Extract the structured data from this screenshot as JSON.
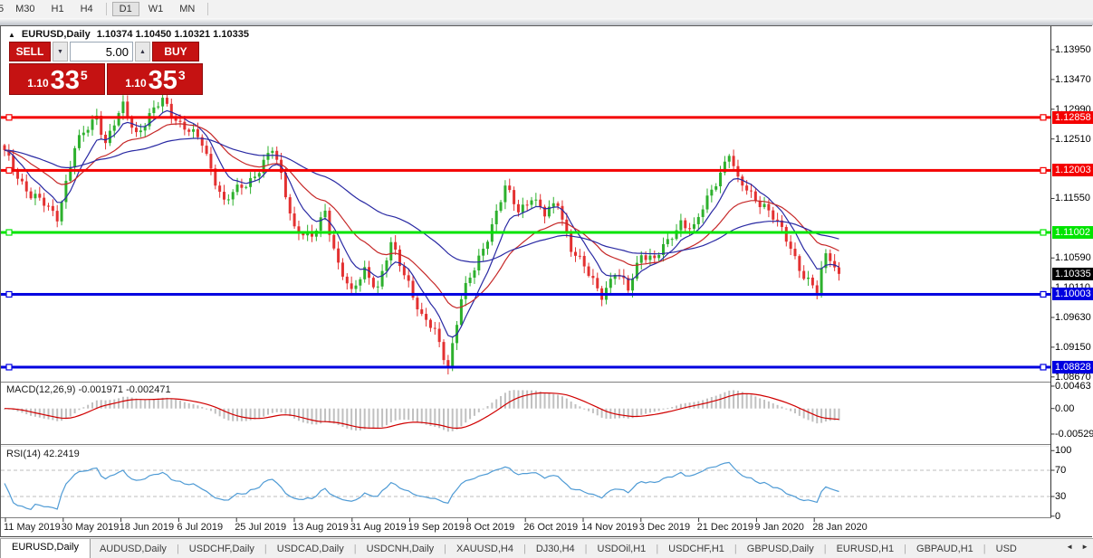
{
  "toolbar": {
    "timeframes": [
      "5",
      "M30",
      "H1",
      "H4",
      "D1",
      "W1",
      "MN"
    ],
    "active": "D1"
  },
  "icons": {
    "collapse_marker": "▲",
    "spin_down": "▼",
    "spin_up": "▲",
    "tab_scroll_left": "◄",
    "tab_scroll_right": "►"
  },
  "chart": {
    "symbol_label": "EURUSD,Daily",
    "ohlc_text": "1.10374 1.10450 1.10321 1.10335",
    "trade_panel": {
      "sell_label": "SELL",
      "buy_label": "BUY",
      "volume": "5.00",
      "sell_price_small": "1.10",
      "sell_price_big": "33",
      "sell_price_sup": "5",
      "buy_price_small": "1.10",
      "buy_price_big": "35",
      "buy_price_sup": "3"
    },
    "scale_ticks": [
      {
        "label": "1.13950",
        "price": 1.1395
      },
      {
        "label": "1.13470",
        "price": 1.1347
      },
      {
        "label": "1.12990",
        "price": 1.1299
      },
      {
        "label": "1.12510",
        "price": 1.1251
      },
      {
        "label": "1.11550",
        "price": 1.1155
      },
      {
        "label": "1.10590",
        "price": 1.1059
      },
      {
        "label": "1.10110",
        "price": 1.1011
      },
      {
        "label": "1.09630",
        "price": 1.0963
      },
      {
        "label": "1.09150",
        "price": 1.0915
      },
      {
        "label": "1.08670",
        "price": 1.0867
      }
    ],
    "levels": [
      {
        "price": 1.12858,
        "label": "1.12858",
        "color": "#f40000"
      },
      {
        "price": 1.12003,
        "label": "1.12003",
        "color": "#f40000"
      },
      {
        "price": 1.11002,
        "label": "1.11002",
        "color": "#00e400"
      },
      {
        "price": 1.10003,
        "label": "1.10003",
        "color": "#0000e0"
      },
      {
        "price": 1.08828,
        "label": "1.08828",
        "color": "#0000e0"
      }
    ],
    "current_price": {
      "price": 1.10335,
      "label": "1.10335",
      "color": "#000000"
    },
    "dates": [
      "11 May 2019",
      "30 May 2019",
      "18 Jun 2019",
      "6 Jul 2019",
      "25 Jul 2019",
      "13 Aug 2019",
      "31 Aug 2019",
      "19 Sep 2019",
      "8 Oct 2019",
      "26 Oct 2019",
      "14 Nov 2019",
      "3 Dec 2019",
      "21 Dec 2019",
      "9 Jan 2020",
      "28 Jan 2020"
    ],
    "bars": 191,
    "price_anchors": [
      [
        0,
        1.1228
      ],
      [
        6,
        1.116
      ],
      [
        12,
        1.1128
      ],
      [
        16,
        1.1235
      ],
      [
        21,
        1.1292
      ],
      [
        23,
        1.1245
      ],
      [
        27,
        1.1302
      ],
      [
        30,
        1.1262
      ],
      [
        36,
        1.1312
      ],
      [
        40,
        1.1278
      ],
      [
        45,
        1.1242
      ],
      [
        50,
        1.115
      ],
      [
        55,
        1.1178
      ],
      [
        61,
        1.1232
      ],
      [
        63,
        1.119
      ],
      [
        66,
        1.111
      ],
      [
        70,
        1.1088
      ],
      [
        73,
        1.1135
      ],
      [
        76,
        1.105
      ],
      [
        79,
        1.0998
      ],
      [
        82,
        1.1042
      ],
      [
        85,
        1.1012
      ],
      [
        88,
        1.1078
      ],
      [
        92,
        1.1022
      ],
      [
        95,
        1.0962
      ],
      [
        98,
        1.0938
      ],
      [
        101,
        1.0886
      ],
      [
        104,
        1.0992
      ],
      [
        107,
        1.104
      ],
      [
        110,
        1.1096
      ],
      [
        114,
        1.117
      ],
      [
        117,
        1.1136
      ],
      [
        120,
        1.116
      ],
      [
        123,
        1.1126
      ],
      [
        126,
        1.115
      ],
      [
        129,
        1.1076
      ],
      [
        133,
        1.103
      ],
      [
        136,
        1.1002
      ],
      [
        139,
        1.1036
      ],
      [
        142,
        1.1006
      ],
      [
        145,
        1.107
      ],
      [
        148,
        1.1056
      ],
      [
        151,
        1.1082
      ],
      [
        154,
        1.112
      ],
      [
        157,
        1.1106
      ],
      [
        160,
        1.1152
      ],
      [
        163,
        1.12
      ],
      [
        165,
        1.123
      ],
      [
        167,
        1.118
      ],
      [
        170,
        1.1162
      ],
      [
        173,
        1.1146
      ],
      [
        176,
        1.1112
      ],
      [
        179,
        1.1076
      ],
      [
        182,
        1.1032
      ],
      [
        185,
        1.1002
      ],
      [
        187,
        1.1066
      ],
      [
        190,
        1.10335
      ]
    ],
    "colors": {
      "candle_up": "#2db02d",
      "candle_down": "#e33131",
      "ma_fast": "#2929a3",
      "ma_mid": "#c62828",
      "ma_slow": "#2929a3",
      "axis_line": "#333333"
    }
  },
  "macd": {
    "label": "MACD(12,26,9) -0.001971 -0.002471",
    "scale": [
      {
        "label": "0.00463",
        "value": 0.00463
      },
      {
        "label": "0.00",
        "value": 0.0
      },
      {
        "label": "-0.00529",
        "value": -0.00529
      }
    ],
    "histogram_color": "#c0c0c0",
    "signal_color": "#d00000"
  },
  "rsi": {
    "label": "RSI(14) 42.2419",
    "scale": [
      {
        "label": "100",
        "value": 100
      },
      {
        "label": "70",
        "value": 70
      },
      {
        "label": "30",
        "value": 30
      },
      {
        "label": "0",
        "value": 0
      }
    ],
    "line_color": "#4f9bd5",
    "level_lines": [
      70,
      30
    ]
  },
  "tabs": {
    "items": [
      "EURUSD,Daily",
      "AUDUSD,Daily",
      "USDCHF,Daily",
      "USDCAD,Daily",
      "USDCNH,Daily",
      "XAUUSD,H4",
      "DJ30,H4",
      "USDOil,H1",
      "USDCHF,H1",
      "GBPUSD,Daily",
      "EURUSD,H1",
      "GBPAUD,H1",
      "USD"
    ],
    "active_index": 0
  }
}
